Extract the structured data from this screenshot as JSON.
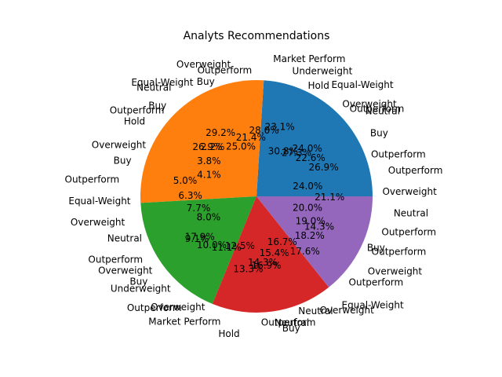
{
  "chart_data": {
    "type": "pie",
    "title": "Analyts Recommendations",
    "autopct_format": "%.1f%%",
    "start_angle_degrees": 0,
    "slices": [
      {
        "label": "Outperform",
        "value": 24.0,
        "pct_label": "24.0%",
        "color": "#1f77b4"
      },
      {
        "label": "Buy",
        "value": 26.9,
        "pct_label": "26.9%",
        "color": "#ff7f0e"
      },
      {
        "label": "Overweight",
        "value": 17.9,
        "pct_label": "17.9%",
        "color": "#2ca02c"
      },
      {
        "label": "Neutral",
        "value": 16.9,
        "pct_label": "16.9%",
        "color": "#d62728"
      },
      {
        "label": "Outperform",
        "value": 14.3,
        "pct_label": "14.3%",
        "color": "#9467bd"
      }
    ],
    "overplotted_labels": [
      "Outperform",
      "Buy",
      "Neutral",
      "Overweight",
      "Equal-Weight",
      "Hold",
      "Underweight",
      "Market Perform",
      "Outperform",
      "Overweight",
      "Buy",
      "Equal-Weight",
      "Neutral",
      "Outperform",
      "Hold",
      "Overweight",
      "Buy",
      "Outperform",
      "Equal-Weight",
      "Overweight",
      "Neutral",
      "Outperform",
      "Buy",
      "Underweight",
      "Outperform",
      "Overweight",
      "Market Perform",
      "Hold",
      "Outperform",
      "Buy",
      "Neutral",
      "Overweight",
      "Equal-Weight",
      "Outperform",
      "Overweight",
      "Buy",
      "Outperform",
      "Neutral",
      "Overweight",
      "Outperform"
    ],
    "overplotted_pct_labels": [
      "24.0%",
      "26.9%",
      "22.6%",
      "27.3%",
      "30.8%",
      "23.1%",
      "28.0%",
      "21.4%",
      "25.0%",
      "29.2%",
      "2.2%",
      "3.8%",
      "4.1%",
      "5.0%",
      "6.3%",
      "7.7%",
      "8.0%",
      "9.1%",
      "10.0%",
      "11.1%",
      "12.5%",
      "13.3%",
      "14.3%",
      "15.4%",
      "16.7%",
      "17.6%",
      "18.2%",
      "19.0%",
      "20.0%",
      "21.1%"
    ],
    "legend": false,
    "grid": false
  }
}
